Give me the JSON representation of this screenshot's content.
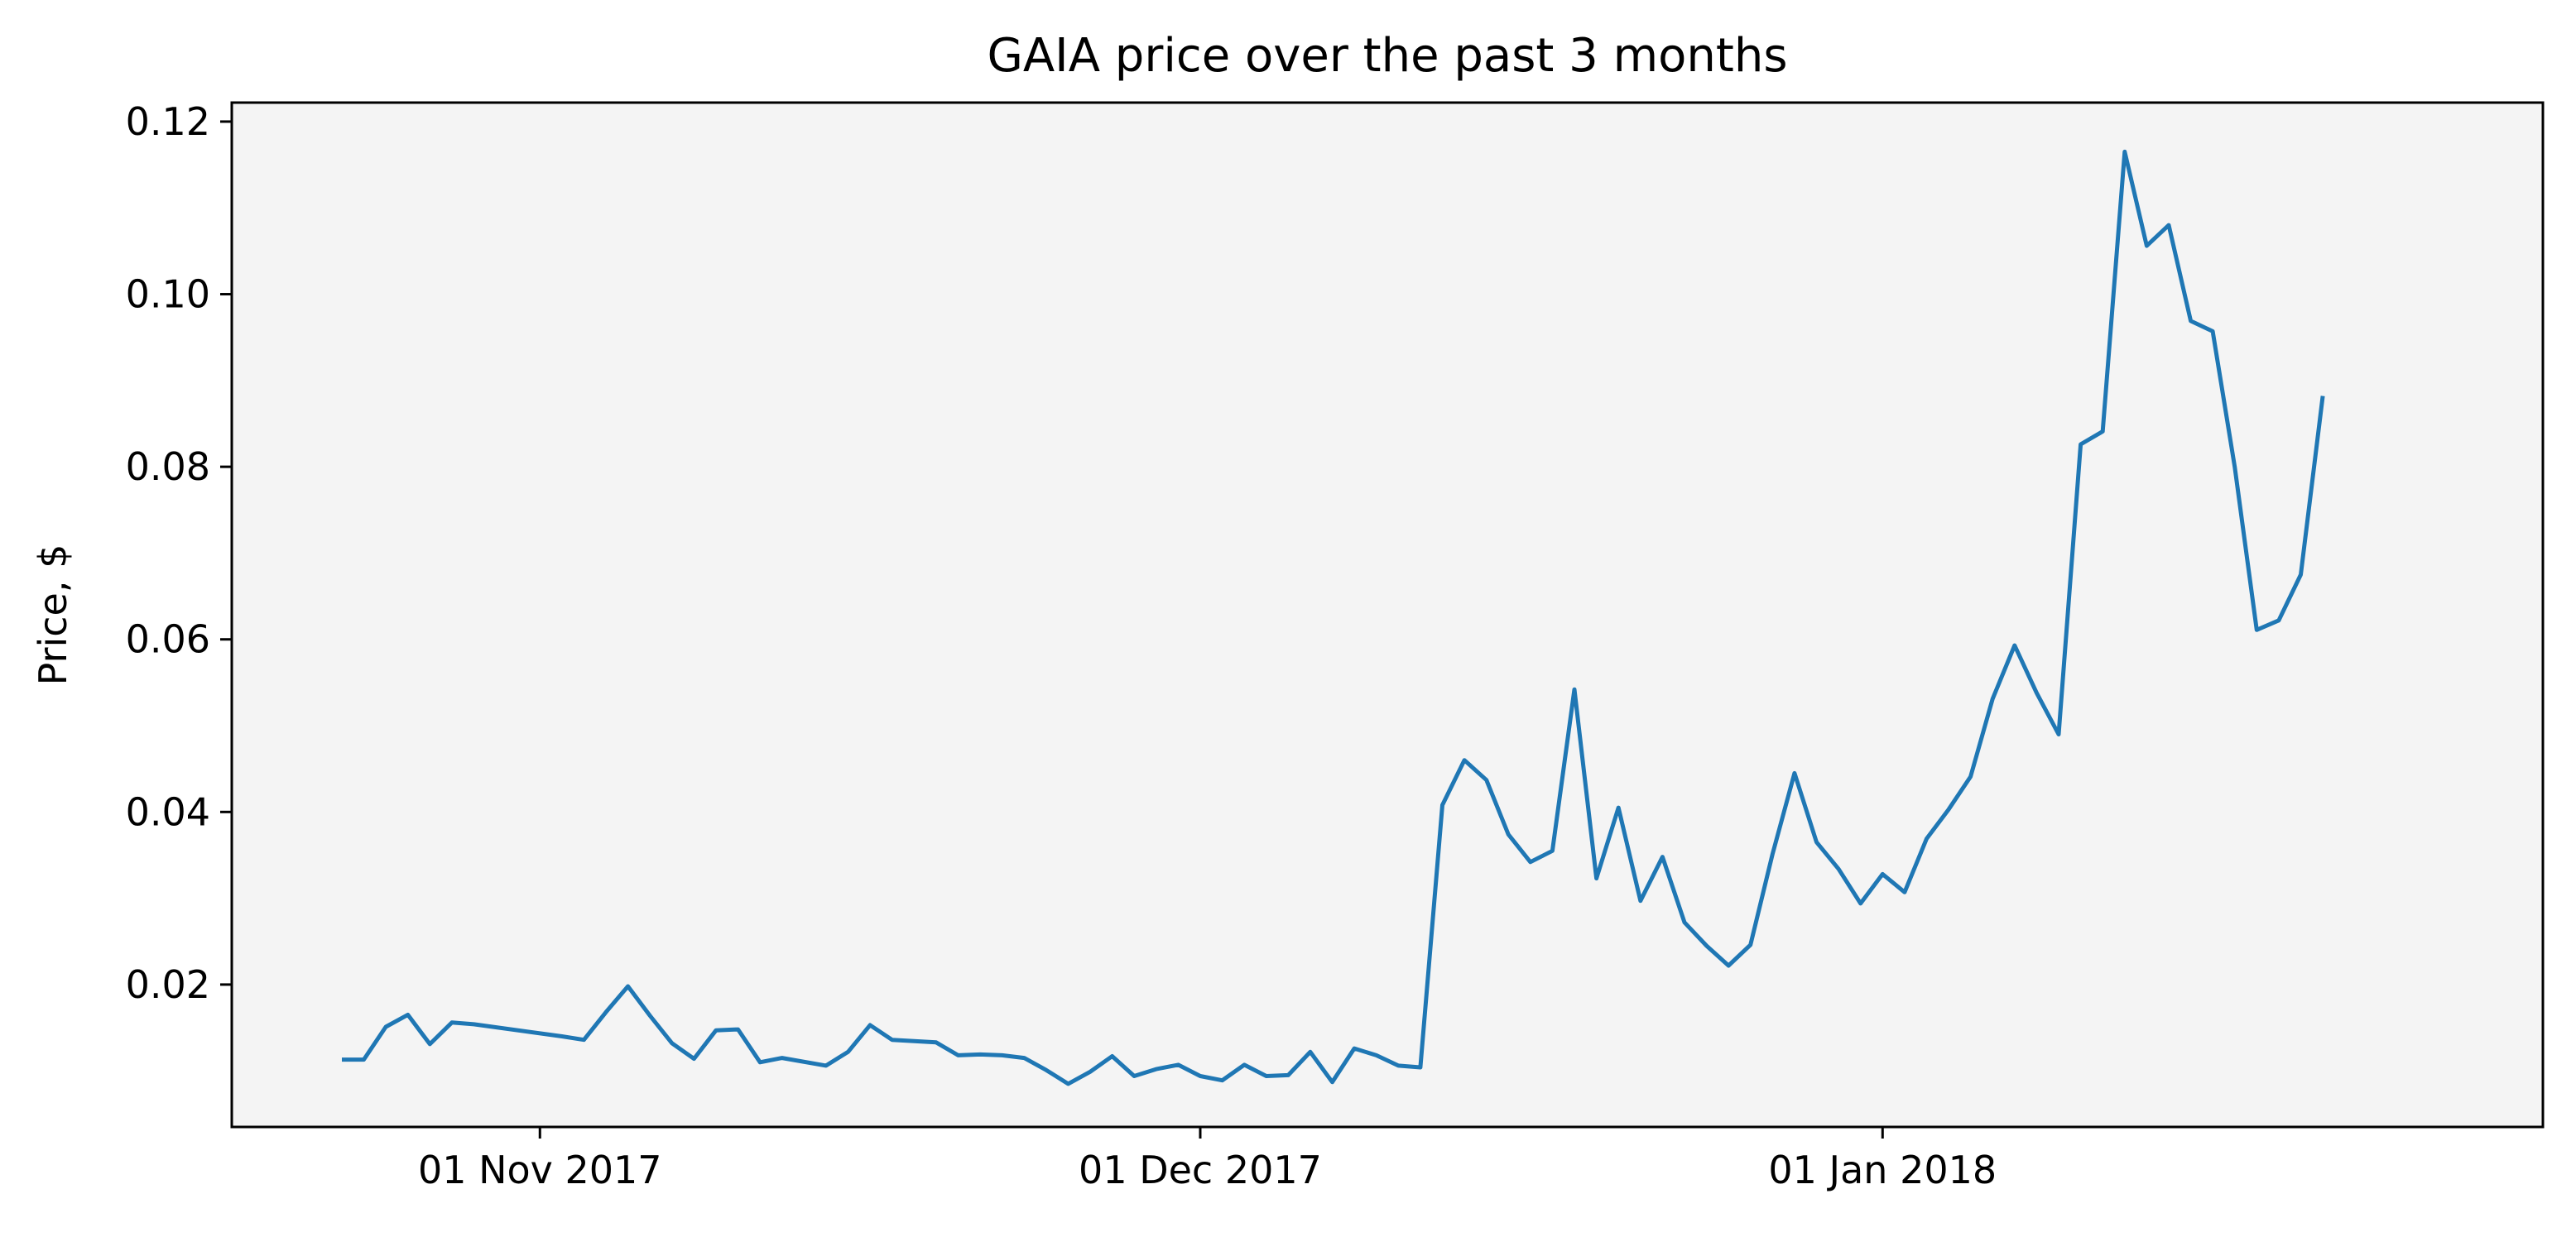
{
  "chart_data": {
    "type": "line",
    "title": "GAIA price over the past 3 months",
    "xlabel": "",
    "ylabel": "Price, $",
    "ylim": [
      0.0035,
      0.1222
    ],
    "xlim": [
      "2017-10-18",
      "2018-01-31"
    ],
    "yticks": [
      0.02,
      0.04,
      0.06,
      0.08,
      0.1,
      0.12
    ],
    "ytick_labels": [
      "0.02",
      "0.04",
      "0.06",
      "0.08",
      "0.10",
      "0.12"
    ],
    "xticks": [
      "2017-11-01",
      "2017-12-01",
      "2018-01-01"
    ],
    "xtick_labels": [
      "01 Nov 2017",
      "01 Dec 2017",
      "01 Jan 2018"
    ],
    "grid": false,
    "background_color": "#f4f4f4",
    "series": [
      {
        "color": "#1f77b4",
        "points": [
          [
            "2017-10-23",
            0.0113
          ],
          [
            "2017-10-24",
            0.0113
          ],
          [
            "2017-10-25",
            0.0151
          ],
          [
            "2017-10-26",
            0.0165
          ],
          [
            "2017-10-27",
            0.0131
          ],
          [
            "2017-10-28",
            0.0156
          ],
          [
            "2017-10-29",
            0.0154
          ],
          [
            "2017-11-02",
            0.014
          ],
          [
            "2017-11-03",
            0.0136
          ],
          [
            "2017-11-04",
            0.0168
          ],
          [
            "2017-11-05",
            0.0198
          ],
          [
            "2017-11-06",
            0.0164
          ],
          [
            "2017-11-07",
            0.0132
          ],
          [
            "2017-11-08",
            0.0114
          ],
          [
            "2017-11-09",
            0.0147
          ],
          [
            "2017-11-10",
            0.0148
          ],
          [
            "2017-11-11",
            0.011
          ],
          [
            "2017-11-12",
            0.0115
          ],
          [
            "2017-11-14",
            0.0106
          ],
          [
            "2017-11-15",
            0.0122
          ],
          [
            "2017-11-16",
            0.0153
          ],
          [
            "2017-11-17",
            0.0136
          ],
          [
            "2017-11-19",
            0.0133
          ],
          [
            "2017-11-20",
            0.0118
          ],
          [
            "2017-11-21",
            0.0119
          ],
          [
            "2017-11-22",
            0.0118
          ],
          [
            "2017-11-23",
            0.0115
          ],
          [
            "2017-11-24",
            0.0101
          ],
          [
            "2017-11-25",
            0.0085
          ],
          [
            "2017-11-26",
            0.0099
          ],
          [
            "2017-11-27",
            0.0117
          ],
          [
            "2017-11-28",
            0.0094
          ],
          [
            "2017-11-29",
            0.0102
          ],
          [
            "2017-11-30",
            0.0107
          ],
          [
            "2017-12-01",
            0.0094
          ],
          [
            "2017-12-02",
            0.0089
          ],
          [
            "2017-12-03",
            0.0107
          ],
          [
            "2017-12-04",
            0.0094
          ],
          [
            "2017-12-05",
            0.0095
          ],
          [
            "2017-12-06",
            0.0122
          ],
          [
            "2017-12-07",
            0.0087
          ],
          [
            "2017-12-08",
            0.0126
          ],
          [
            "2017-12-09",
            0.0118
          ],
          [
            "2017-12-10",
            0.0106
          ],
          [
            "2017-12-11",
            0.0104
          ],
          [
            "2017-12-12",
            0.0408
          ],
          [
            "2017-12-13",
            0.046
          ],
          [
            "2017-12-14",
            0.0437
          ],
          [
            "2017-12-15",
            0.0374
          ],
          [
            "2017-12-16",
            0.0342
          ],
          [
            "2017-12-17",
            0.0355
          ],
          [
            "2017-12-18",
            0.0542
          ],
          [
            "2017-12-19",
            0.0323
          ],
          [
            "2017-12-20",
            0.0405
          ],
          [
            "2017-12-21",
            0.0297
          ],
          [
            "2017-12-22",
            0.0348
          ],
          [
            "2017-12-23",
            0.0272
          ],
          [
            "2017-12-24",
            0.0245
          ],
          [
            "2017-12-25",
            0.0222
          ],
          [
            "2017-12-26",
            0.0246
          ],
          [
            "2017-12-27",
            0.0351
          ],
          [
            "2017-12-28",
            0.0445
          ],
          [
            "2017-12-29",
            0.0365
          ],
          [
            "2017-12-30",
            0.0334
          ],
          [
            "2017-12-31",
            0.0294
          ],
          [
            "2018-01-01",
            0.0328
          ],
          [
            "2018-01-02",
            0.0307
          ],
          [
            "2018-01-03",
            0.0369
          ],
          [
            "2018-01-04",
            0.0403
          ],
          [
            "2018-01-05",
            0.0441
          ],
          [
            "2018-01-06",
            0.0531
          ],
          [
            "2018-01-07",
            0.0593
          ],
          [
            "2018-01-08",
            0.0538
          ],
          [
            "2018-01-09",
            0.049
          ],
          [
            "2018-01-10",
            0.0826
          ],
          [
            "2018-01-11",
            0.0841
          ],
          [
            "2018-01-12",
            0.1165
          ],
          [
            "2018-01-13",
            0.1056
          ],
          [
            "2018-01-14",
            0.108
          ],
          [
            "2018-01-15",
            0.0969
          ],
          [
            "2018-01-16",
            0.0957
          ],
          [
            "2018-01-17",
            0.08
          ],
          [
            "2018-01-18",
            0.0611
          ],
          [
            "2018-01-19",
            0.0622
          ],
          [
            "2018-01-20",
            0.0675
          ],
          [
            "2018-01-21",
            0.0882
          ]
        ]
      }
    ]
  }
}
